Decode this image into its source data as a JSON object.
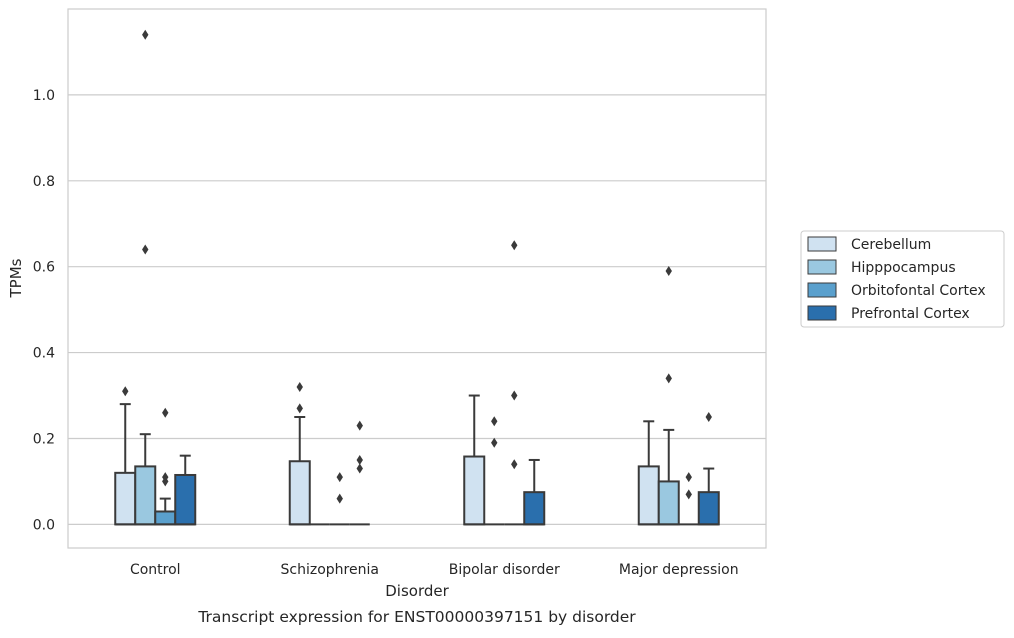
{
  "chart_data": {
    "type": "box",
    "title": "Transcript expression for ENST00000397151 by disorder",
    "xlabel": "Disorder",
    "ylabel": "TPMs",
    "ylim": [
      -0.055,
      1.2
    ],
    "yticks": [
      0.0,
      0.2,
      0.4,
      0.6,
      0.8,
      1.0
    ],
    "ytick_labels": [
      "0.0",
      "0.2",
      "0.4",
      "0.6",
      "0.8",
      "1.0"
    ],
    "grid": "horizontal",
    "legend_position": "right",
    "categories": [
      "Control",
      "Schizophrenia",
      "Bipolar disorder",
      "Major depression"
    ],
    "series": [
      {
        "name": "Cerebellum",
        "color": "#d0e2f1",
        "boxes": [
          {
            "q1": 0.0,
            "median": 0.0,
            "q3": 0.12,
            "whisker_low": 0.0,
            "whisker_high": 0.28,
            "outliers": [
              0.31
            ]
          },
          {
            "q1": 0.0,
            "median": 0.0,
            "q3": 0.147,
            "whisker_low": 0.0,
            "whisker_high": 0.25,
            "outliers": [
              0.32,
              0.27
            ]
          },
          {
            "q1": 0.0,
            "median": 0.0,
            "q3": 0.158,
            "whisker_low": 0.0,
            "whisker_high": 0.3,
            "outliers": []
          },
          {
            "q1": 0.0,
            "median": 0.0,
            "q3": 0.135,
            "whisker_low": 0.0,
            "whisker_high": 0.24,
            "outliers": []
          }
        ]
      },
      {
        "name": "Hipppocampus",
        "color": "#9ac8e0",
        "boxes": [
          {
            "q1": 0.0,
            "median": 0.0,
            "q3": 0.135,
            "whisker_low": 0.0,
            "whisker_high": 0.21,
            "outliers": [
              1.14,
              0.64
            ]
          },
          {
            "q1": 0.0,
            "median": 0.0,
            "q3": 0.0,
            "whisker_low": 0.0,
            "whisker_high": 0.0,
            "outliers": []
          },
          {
            "q1": 0.0,
            "median": 0.0,
            "q3": 0.0,
            "whisker_low": 0.0,
            "whisker_high": 0.0,
            "outliers": [
              0.24,
              0.19
            ]
          },
          {
            "q1": 0.0,
            "median": 0.0,
            "q3": 0.1,
            "whisker_low": 0.0,
            "whisker_high": 0.22,
            "outliers": [
              0.59,
              0.34
            ]
          }
        ]
      },
      {
        "name": "Orbitofontal Cortex",
        "color": "#5aa0cd",
        "boxes": [
          {
            "q1": 0.0,
            "median": 0.0,
            "q3": 0.03,
            "whisker_low": 0.0,
            "whisker_high": 0.06,
            "outliers": [
              0.26,
              0.11,
              0.1
            ]
          },
          {
            "q1": 0.0,
            "median": 0.0,
            "q3": 0.0,
            "whisker_low": 0.0,
            "whisker_high": 0.0,
            "outliers": [
              0.11,
              0.06
            ]
          },
          {
            "q1": 0.0,
            "median": 0.0,
            "q3": 0.0,
            "whisker_low": 0.0,
            "whisker_high": 0.0,
            "outliers": [
              0.65,
              0.3,
              0.14
            ]
          },
          {
            "q1": 0.0,
            "median": 0.0,
            "q3": 0.0,
            "whisker_low": 0.0,
            "whisker_high": 0.0,
            "outliers": [
              0.11,
              0.07
            ]
          }
        ]
      },
      {
        "name": "Prefrontal Cortex",
        "color": "#2a6fad",
        "boxes": [
          {
            "q1": 0.0,
            "median": 0.0,
            "q3": 0.115,
            "whisker_low": 0.0,
            "whisker_high": 0.16,
            "outliers": []
          },
          {
            "q1": 0.0,
            "median": 0.0,
            "q3": 0.0,
            "whisker_low": 0.0,
            "whisker_high": 0.0,
            "outliers": [
              0.23,
              0.15,
              0.13
            ]
          },
          {
            "q1": 0.0,
            "median": 0.0,
            "q3": 0.075,
            "whisker_low": 0.0,
            "whisker_high": 0.15,
            "outliers": []
          },
          {
            "q1": 0.0,
            "median": 0.0,
            "q3": 0.075,
            "whisker_low": 0.0,
            "whisker_high": 0.13,
            "outliers": [
              0.25
            ]
          }
        ]
      }
    ]
  }
}
